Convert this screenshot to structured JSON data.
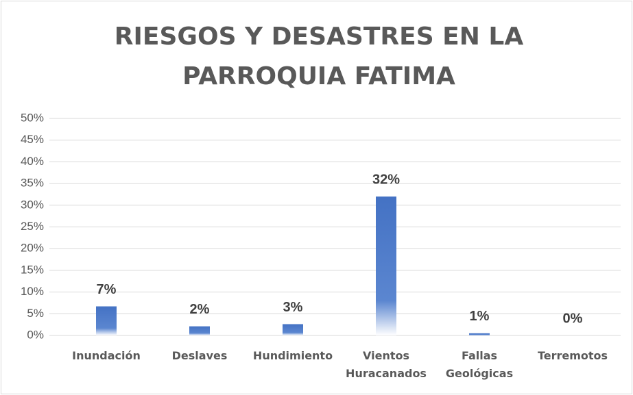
{
  "chart_data": {
    "type": "bar",
    "title": "RIESGOS Y DESASTRES EN LA PARROQUIA FATIMA",
    "categories": [
      "Inundación",
      "Deslaves",
      "Hundimiento",
      "Vientos Huracanados",
      "Fallas Geológicas",
      "Terremotos"
    ],
    "values": [
      6.7,
      2.1,
      2.6,
      32,
      0.5,
      0
    ],
    "value_labels": [
      "7%",
      "2%",
      "3%",
      "32%",
      "1%",
      "0%"
    ],
    "color": "#4472c4",
    "ylim": [
      0,
      50
    ],
    "yticks": [
      {
        "value": 0,
        "label": "0%"
      },
      {
        "value": 5,
        "label": "5%"
      },
      {
        "value": 10,
        "label": "10%"
      },
      {
        "value": 15,
        "label": "15%"
      },
      {
        "value": 20,
        "label": "20%"
      },
      {
        "value": 25,
        "label": "25%"
      },
      {
        "value": 30,
        "label": "30%"
      },
      {
        "value": 35,
        "label": "35%"
      },
      {
        "value": 40,
        "label": "40%"
      },
      {
        "value": 45,
        "label": "45%"
      },
      {
        "value": 50,
        "label": "50%"
      }
    ],
    "grid": true
  }
}
